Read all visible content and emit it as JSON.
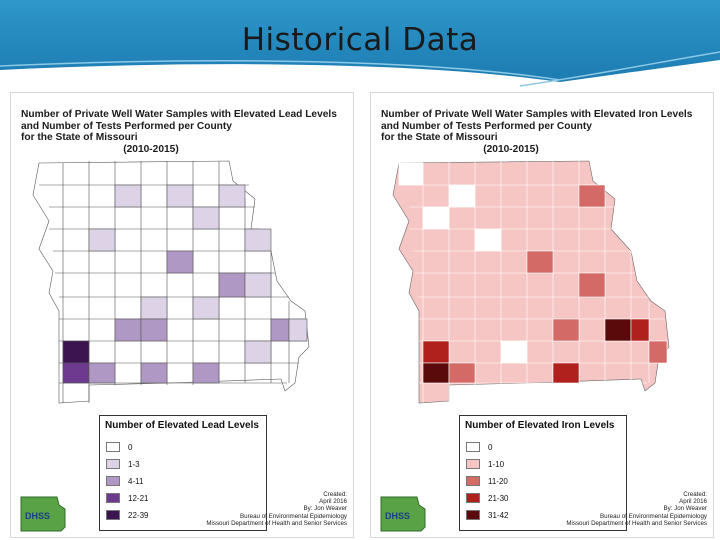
{
  "slide": {
    "title": "Historical Data"
  },
  "lead_panel": {
    "title_line1": "Number of Private Well Water Samples with Elevated Lead Levels",
    "title_line2": "and Number of Tests Performed per County",
    "title_line3": "for the State of Missouri",
    "title_line4": "(2010-2015)",
    "legend_title": "Number of Elevated Lead Levels",
    "legend_items": [
      {
        "label": "0",
        "color": "#ffffff"
      },
      {
        "label": "1-3",
        "color": "#ddd2e6"
      },
      {
        "label": "4-11",
        "color": "#b098c4"
      },
      {
        "label": "12-21",
        "color": "#6e3a8f"
      },
      {
        "label": "22-39",
        "color": "#3b1450"
      }
    ],
    "credit_lines": [
      "Created:",
      "April 2016",
      "By: Jon Weaver",
      "Bureau of Environmental Epidemiology",
      "Missouri Department of Health and Senior Services"
    ],
    "logo_text": "DHSS"
  },
  "iron_panel": {
    "title_line1": "Number of Private Well Water Samples with Elevated Iron Levels",
    "title_line2": "and Number of Tests Performed per County",
    "title_line3": "for the State of Missouri",
    "title_line4": "(2010-2015)",
    "legend_title": "Number of Elevated Iron Levels",
    "legend_items": [
      {
        "label": "0",
        "color": "#ffffff"
      },
      {
        "label": "1-10",
        "color": "#f6c6c4"
      },
      {
        "label": "11-20",
        "color": "#d46a66"
      },
      {
        "label": "21-30",
        "color": "#b0201c"
      },
      {
        "label": "31-42",
        "color": "#5a0a0a"
      }
    ],
    "credit_lines": [
      "Created:",
      "April 2016",
      "By: Jon Weaver",
      "Bureau of Environmental Epidemiology",
      "Missouri Department of Health and Senior Services"
    ],
    "logo_text": "DHSS"
  }
}
